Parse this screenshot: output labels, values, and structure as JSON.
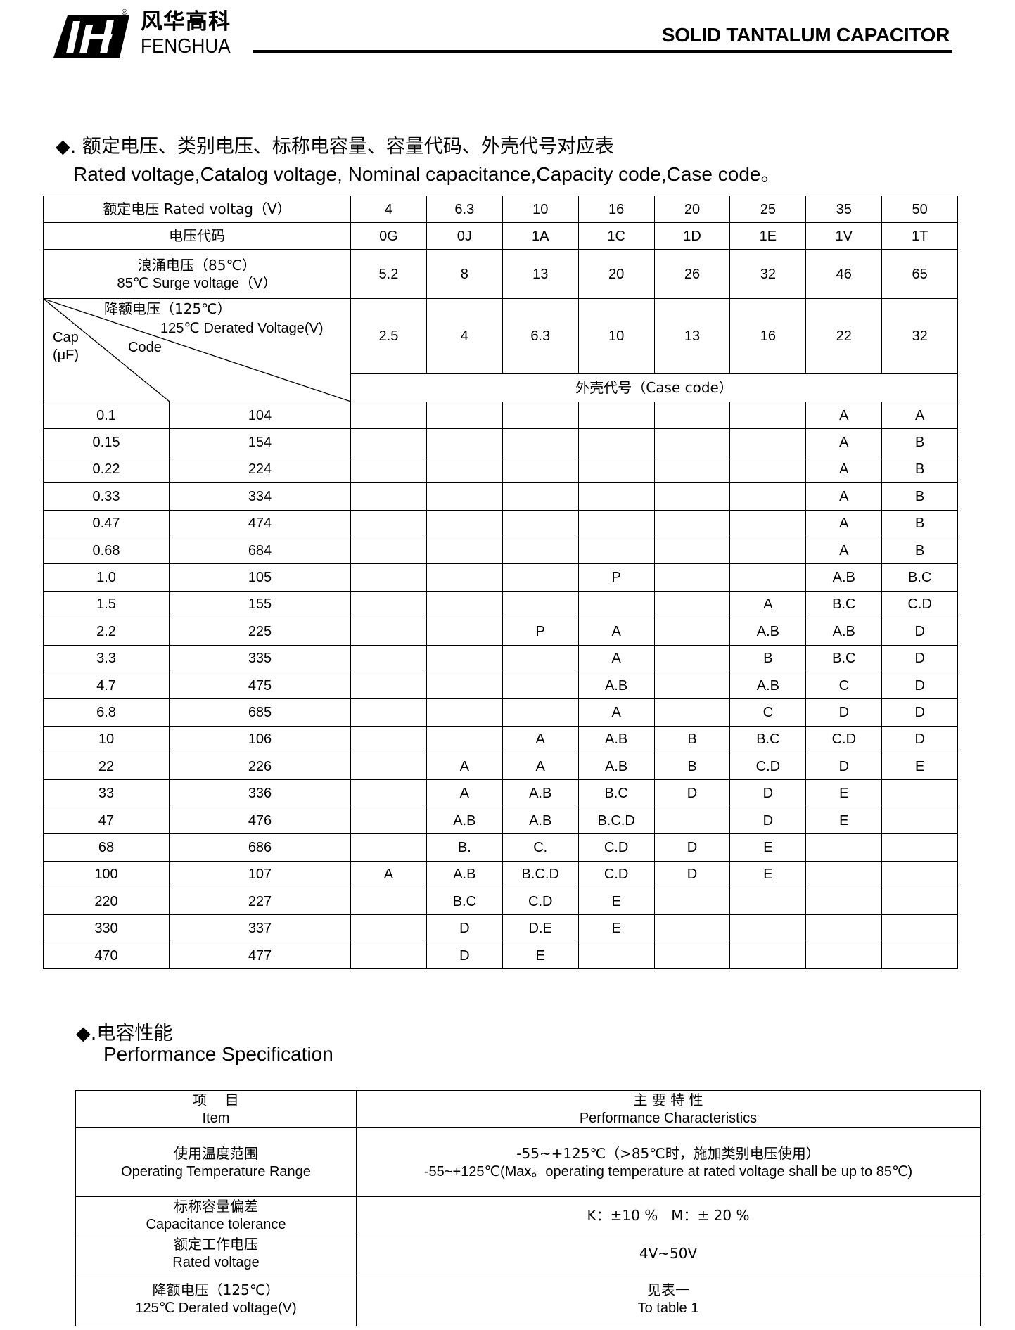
{
  "header": {
    "logo_cn": "风华高科",
    "logo_en": "FENGHUA",
    "registered_mark": "®",
    "title": "SOLID TANTALUM CAPACITOR"
  },
  "section1": {
    "bullet": "◆",
    "title_cn": ". 额定电压、类别电压、标称电容量、容量代码、外壳代号对应表",
    "title_en": "Rated voltage,Catalog voltage, Nominal capacitance,Capacity code,Case code。"
  },
  "table1": {
    "rated_voltage_label": "额定电压 Rated voltag（V）",
    "rated_voltages": [
      "4",
      "6.3",
      "10",
      "16",
      "20",
      "25",
      "35",
      "50"
    ],
    "voltage_code_label": "电压代码",
    "voltage_codes": [
      "0G",
      "0J",
      "1A",
      "1C",
      "1D",
      "1E",
      "1V",
      "1T"
    ],
    "surge_label_cn": "浪涌电压（85℃）",
    "surge_label_en": "85℃ Surge voltage（V）",
    "surge_voltages": [
      "5.2",
      "8",
      "13",
      "20",
      "26",
      "32",
      "46",
      "65"
    ],
    "derated_label_cn": "降额电压（125℃）",
    "derated_label_en": "125℃ Derated Voltage(V)",
    "cap_label": "Cap",
    "cap_unit": "(μF)",
    "code_label": "Code",
    "derated_voltages": [
      "2.5",
      "4",
      "6.3",
      "10",
      "13",
      "16",
      "22",
      "32"
    ],
    "case_code_label": "外壳代号（Case code）",
    "rows": [
      [
        "0.1",
        "104",
        "",
        "",
        "",
        "",
        "",
        "",
        "A",
        "A"
      ],
      [
        "0.15",
        "154",
        "",
        "",
        "",
        "",
        "",
        "",
        "A",
        "B"
      ],
      [
        "0.22",
        "224",
        "",
        "",
        "",
        "",
        "",
        "",
        "A",
        "B"
      ],
      [
        "0.33",
        "334",
        "",
        "",
        "",
        "",
        "",
        "",
        "A",
        "B"
      ],
      [
        "0.47",
        "474",
        "",
        "",
        "",
        "",
        "",
        "",
        "A",
        "B"
      ],
      [
        "0.68",
        "684",
        "",
        "",
        "",
        "",
        "",
        "",
        "A",
        "B"
      ],
      [
        "1.0",
        "105",
        "",
        "",
        "",
        "P",
        "",
        "",
        "A.B",
        "B.C"
      ],
      [
        "1.5",
        "155",
        "",
        "",
        "",
        "",
        "",
        "A",
        "B.C",
        "C.D"
      ],
      [
        "2.2",
        "225",
        "",
        "",
        "P",
        "A",
        "",
        "A.B",
        "A.B",
        "D"
      ],
      [
        "3.3",
        "335",
        "",
        "",
        "",
        "A",
        "",
        "B",
        "B.C",
        "D"
      ],
      [
        "4.7",
        "475",
        "",
        "",
        "",
        "A.B",
        "",
        "A.B",
        "C",
        "D"
      ],
      [
        "6.8",
        "685",
        "",
        "",
        "",
        "A",
        "",
        "C",
        "D",
        "D"
      ],
      [
        "10",
        "106",
        "",
        "",
        "A",
        "A.B",
        "B",
        "B.C",
        "C.D",
        "D"
      ],
      [
        "22",
        "226",
        "",
        "A",
        "A",
        "A.B",
        "B",
        "C.D",
        "D",
        "E"
      ],
      [
        "33",
        "336",
        "",
        "A",
        "A.B",
        "B.C",
        "D",
        "D",
        "E",
        ""
      ],
      [
        "47",
        "476",
        "",
        "A.B",
        "A.B",
        "B.C.D",
        "",
        "D",
        "E",
        ""
      ],
      [
        "68",
        "686",
        "",
        "B.",
        "C.",
        "C.D",
        "D",
        "E",
        "",
        ""
      ],
      [
        "100",
        "107",
        "A",
        "A.B",
        "B.C.D",
        "C.D",
        "D",
        "E",
        "",
        ""
      ],
      [
        "220",
        "227",
        "",
        "B.C",
        "C.D",
        "E",
        "",
        "",
        "",
        ""
      ],
      [
        "330",
        "337",
        "",
        "D",
        "D.E",
        "E",
        "",
        "",
        "",
        ""
      ],
      [
        "470",
        "477",
        "",
        "D",
        "E",
        "",
        "",
        "",
        "",
        ""
      ]
    ]
  },
  "section2": {
    "bullet": "◆",
    "title_cn": ".电容性能",
    "title_en": "Performance Specification"
  },
  "table2": {
    "header": {
      "item_cn": "项    目",
      "item_en": "Item",
      "char_cn": "主 要 特 性",
      "char_en": "Performance Characteristics"
    },
    "rows": [
      {
        "item_cn": "使用温度范围",
        "item_en": "Operating Temperature Range",
        "value_1": "-55~+125℃（>85℃时，施加类别电压使用）",
        "value_2": "-55~+125℃(Max。operating temperature at rated voltage shall be up to 85℃)"
      },
      {
        "item_cn": "标称容量偏差",
        "item_en": "Capacitance tolerance",
        "value_1": "K：±10 %   M：± 20 %",
        "value_2": ""
      },
      {
        "item_cn": "额定工作电压",
        "item_en": "Rated voltage",
        "value_1": "4V~50V",
        "value_2": ""
      },
      {
        "item_cn": "降额电压（125℃）",
        "item_en": "125℃ Derated voltage(V)",
        "value_1": "见表一",
        "value_2": "To  table  1"
      }
    ]
  }
}
